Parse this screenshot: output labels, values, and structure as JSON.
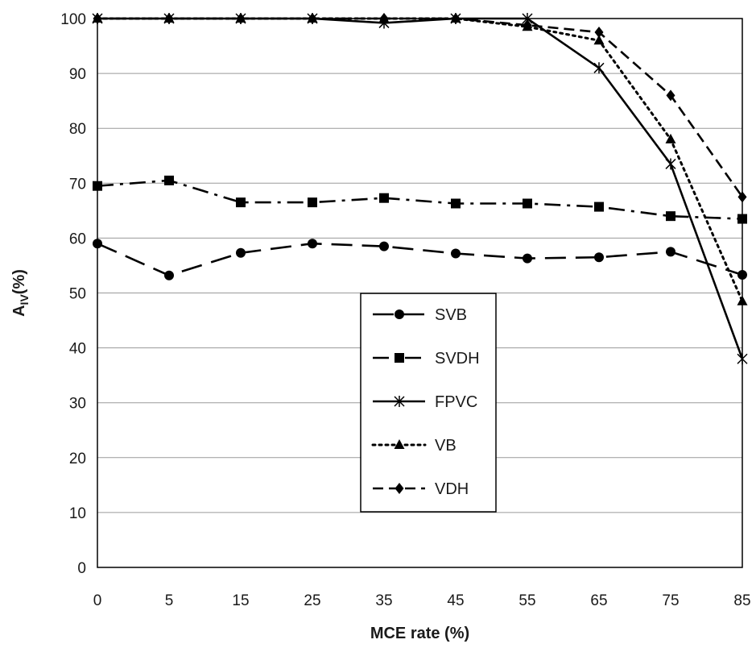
{
  "chart_data": {
    "type": "line",
    "title": "",
    "xlabel": "MCE rate (%)",
    "ylabel": "A",
    "ylabel_sub": "IV",
    "ylabel_suffix": "(%)",
    "x": [
      "0",
      "5",
      "15",
      "25",
      "35",
      "45",
      "55",
      "65",
      "75",
      "85"
    ],
    "ylim": [
      0,
      100
    ],
    "yticks": [
      "0",
      "10",
      "20",
      "30",
      "40",
      "50",
      "60",
      "70",
      "80",
      "90",
      "100"
    ],
    "grid": "horizontal",
    "legend_position": "center-bottom",
    "series": [
      {
        "name": "SVB",
        "marker": "circle",
        "dash": "long-dash",
        "values": [
          59,
          53.2,
          57.3,
          59,
          58.5,
          57.2,
          56.3,
          56.5,
          57.5,
          53.3
        ]
      },
      {
        "name": "SVDH",
        "marker": "square",
        "dash": "dash-dot",
        "values": [
          69.5,
          70.5,
          66.5,
          66.5,
          67.3,
          66.3,
          66.3,
          65.7,
          64,
          63.5
        ]
      },
      {
        "name": "FPVC",
        "marker": "asterisk",
        "dash": "solid",
        "values": [
          100,
          100,
          100,
          100,
          99.2,
          100,
          100,
          91,
          73.5,
          38
        ]
      },
      {
        "name": "VB",
        "marker": "triangle",
        "dash": "dotted",
        "values": [
          100,
          100,
          100,
          100,
          100,
          100,
          98.5,
          96,
          78,
          48.5
        ]
      },
      {
        "name": "VDH",
        "marker": "diamond",
        "dash": "dashed",
        "values": [
          100,
          100,
          100,
          100,
          100,
          100,
          98.8,
          97.5,
          86,
          67.5
        ]
      }
    ],
    "colors": {
      "line": "#000000",
      "grid": "#9a9a9a"
    }
  }
}
